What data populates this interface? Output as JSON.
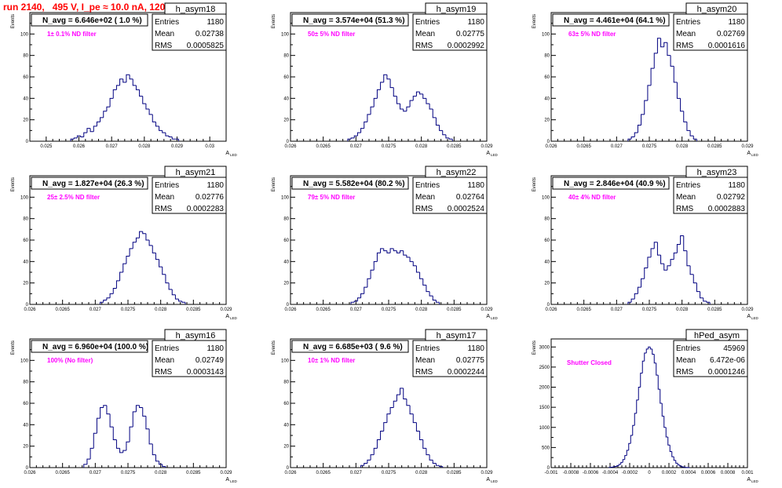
{
  "page": {
    "title": "run 2140,   495 V, I_pe ≈ 10.0 nA, 120 Hz",
    "y_axis_label": "Events",
    "x_axis_label": "A",
    "x_axis_label_sub": "LED",
    "stats_labels": {
      "entries": "Entries",
      "mean": "Mean",
      "rms": "RMS"
    },
    "colors": {
      "title": "#ff0000",
      "histogram": "#000080",
      "annotation": "#ff00ff",
      "frame": "#000000"
    }
  },
  "chart_data": [
    {
      "type": "bar",
      "name": "h_asym18",
      "title": "h_asym18",
      "navg": "N_avg = 6.646e+02 ( 1.0 %)",
      "filter": "1± 0.1% ND filter",
      "stats": {
        "entries": "1180",
        "mean": "0.02738",
        "rms": "0.0005825"
      },
      "xlim": [
        0.0245,
        0.0305
      ],
      "ylim": [
        0,
        120
      ],
      "xticks": [
        0.025,
        0.026,
        0.027,
        0.028,
        0.029,
        0.03
      ],
      "xticklabels": [
        "0.025",
        "0.026",
        "0.027",
        "0.028",
        "0.029",
        "0.03"
      ],
      "yticks": [
        0,
        20,
        40,
        60,
        80,
        100
      ],
      "yticklabels": [
        "0",
        "20",
        "40",
        "60",
        "80",
        "100"
      ],
      "x": [
        0.0258,
        0.0259,
        0.026,
        0.0261,
        0.0262,
        0.0263,
        0.0264,
        0.0265,
        0.0266,
        0.0267,
        0.0268,
        0.0269,
        0.027,
        0.0271,
        0.0272,
        0.0273,
        0.0274,
        0.0275,
        0.0276,
        0.0277,
        0.0278,
        0.0279,
        0.028,
        0.0281,
        0.0282,
        0.0283,
        0.0284,
        0.0285,
        0.0286,
        0.0287,
        0.0288,
        0.0289,
        0.029
      ],
      "values": [
        2,
        3,
        5,
        4,
        8,
        12,
        9,
        14,
        18,
        22,
        28,
        32,
        40,
        48,
        52,
        58,
        55,
        62,
        58,
        52,
        48,
        42,
        35,
        30,
        25,
        18,
        14,
        10,
        8,
        5,
        4,
        2,
        2
      ]
    },
    {
      "type": "bar",
      "name": "h_asym19",
      "title": "h_asym19",
      "navg": "N_avg = 3.574e+04 (51.3 %)",
      "filter": "50± 5% ND filter",
      "stats": {
        "entries": "1180",
        "mean": "0.02775",
        "rms": "0.0002992"
      },
      "xlim": [
        0.026,
        0.029
      ],
      "ylim": [
        0,
        120
      ],
      "xticks": [
        0.026,
        0.0265,
        0.027,
        0.0275,
        0.028,
        0.0285,
        0.029
      ],
      "xticklabels": [
        "0.026",
        "0.0265",
        "0.027",
        "0.0275",
        "0.028",
        "0.0285",
        "0.029"
      ],
      "yticks": [
        0,
        20,
        40,
        60,
        80,
        100
      ],
      "yticklabels": [
        "0",
        "20",
        "40",
        "60",
        "80",
        "100"
      ],
      "x": [
        0.0269,
        0.02695,
        0.027,
        0.02705,
        0.0271,
        0.02715,
        0.0272,
        0.02725,
        0.0273,
        0.02735,
        0.0274,
        0.02745,
        0.0275,
        0.02755,
        0.0276,
        0.02765,
        0.0277,
        0.02775,
        0.0278,
        0.02785,
        0.0279,
        0.02795,
        0.028,
        0.02805,
        0.0281,
        0.02815,
        0.0282,
        0.02825,
        0.0283,
        0.02835,
        0.0284,
        0.02845
      ],
      "values": [
        2,
        3,
        5,
        8,
        12,
        18,
        25,
        32,
        40,
        48,
        55,
        62,
        58,
        50,
        42,
        35,
        30,
        28,
        32,
        38,
        42,
        46,
        44,
        40,
        35,
        30,
        22,
        15,
        10,
        6,
        3,
        2
      ]
    },
    {
      "type": "bar",
      "name": "h_asym20",
      "title": "h_asym20",
      "navg": "N_avg = 4.461e+04 (64.1 %)",
      "filter": "63± 5% ND filter",
      "stats": {
        "entries": "1180",
        "mean": "0.02769",
        "rms": "0.0001616"
      },
      "xlim": [
        0.026,
        0.029
      ],
      "ylim": [
        0,
        120
      ],
      "xticks": [
        0.026,
        0.0265,
        0.027,
        0.0275,
        0.028,
        0.0285,
        0.029
      ],
      "xticklabels": [
        "0.026",
        "0.0265",
        "0.027",
        "0.0275",
        "0.028",
        "0.0285",
        "0.029"
      ],
      "yticks": [
        0,
        20,
        40,
        60,
        80,
        100
      ],
      "yticklabels": [
        "0",
        "20",
        "40",
        "60",
        "80",
        "100"
      ],
      "x": [
        0.0272,
        0.02725,
        0.0273,
        0.02735,
        0.0274,
        0.02745,
        0.0275,
        0.02755,
        0.0276,
        0.02765,
        0.0277,
        0.02775,
        0.0278,
        0.02785,
        0.0279,
        0.02795,
        0.028,
        0.02805,
        0.0281,
        0.02815,
        0.0282
      ],
      "values": [
        2,
        4,
        8,
        15,
        25,
        38,
        52,
        68,
        82,
        96,
        88,
        92,
        80,
        70,
        55,
        40,
        28,
        18,
        10,
        5,
        2
      ]
    },
    {
      "type": "bar",
      "name": "h_asym21",
      "title": "h_asym21",
      "navg": "N_avg = 1.827e+04 (26.3 %)",
      "filter": "25± 2.5% ND filter",
      "stats": {
        "entries": "1180",
        "mean": "0.02776",
        "rms": "0.0002283"
      },
      "xlim": [
        0.026,
        0.029
      ],
      "ylim": [
        0,
        120
      ],
      "xticks": [
        0.026,
        0.0265,
        0.027,
        0.0275,
        0.028,
        0.0285,
        0.029
      ],
      "xticklabels": [
        "0.026",
        "0.0265",
        "0.027",
        "0.0275",
        "0.028",
        "0.0285",
        "0.029"
      ],
      "yticks": [
        0,
        20,
        40,
        60,
        80,
        100
      ],
      "yticklabels": [
        "0",
        "20",
        "40",
        "60",
        "80",
        "100"
      ],
      "x": [
        0.0271,
        0.02715,
        0.0272,
        0.02725,
        0.0273,
        0.02735,
        0.0274,
        0.02745,
        0.0275,
        0.02755,
        0.0276,
        0.02765,
        0.0277,
        0.02775,
        0.0278,
        0.02785,
        0.0279,
        0.02795,
        0.028,
        0.02805,
        0.0281,
        0.02815,
        0.0282,
        0.02825,
        0.0283,
        0.02835
      ],
      "values": [
        2,
        4,
        6,
        10,
        15,
        22,
        30,
        38,
        45,
        52,
        58,
        62,
        68,
        66,
        60,
        55,
        48,
        42,
        35,
        28,
        20,
        14,
        9,
        5,
        3,
        2
      ]
    },
    {
      "type": "bar",
      "name": "h_asym22",
      "title": "h_asym22",
      "navg": "N_avg = 5.582e+04 (80.2 %)",
      "filter": "79± 5% ND filter",
      "stats": {
        "entries": "1180",
        "mean": "0.02764",
        "rms": "0.0002524"
      },
      "xlim": [
        0.026,
        0.029
      ],
      "ylim": [
        0,
        120
      ],
      "xticks": [
        0.026,
        0.0265,
        0.027,
        0.0275,
        0.028,
        0.0285,
        0.029
      ],
      "xticklabels": [
        "0.026",
        "0.0265",
        "0.027",
        "0.0275",
        "0.028",
        "0.0285",
        "0.029"
      ],
      "yticks": [
        0,
        20,
        40,
        60,
        80,
        100
      ],
      "yticklabels": [
        "0",
        "20",
        "40",
        "60",
        "80",
        "100"
      ],
      "x": [
        0.02695,
        0.027,
        0.02705,
        0.0271,
        0.02715,
        0.0272,
        0.02725,
        0.0273,
        0.02735,
        0.0274,
        0.02745,
        0.0275,
        0.02755,
        0.0276,
        0.02765,
        0.0277,
        0.02775,
        0.0278,
        0.02785,
        0.0279,
        0.02795,
        0.028,
        0.02805,
        0.0281,
        0.02815,
        0.0282,
        0.02825
      ],
      "values": [
        2,
        3,
        6,
        10,
        16,
        24,
        32,
        40,
        48,
        52,
        50,
        48,
        52,
        50,
        48,
        50,
        46,
        44,
        40,
        36,
        30,
        24,
        18,
        12,
        8,
        4,
        2
      ]
    },
    {
      "type": "bar",
      "name": "h_asym23",
      "title": "h_asym23",
      "navg": "N_avg = 2.846e+04 (40.9 %)",
      "filter": "40± 4% ND filter",
      "stats": {
        "entries": "1180",
        "mean": "0.02792",
        "rms": "0.0002883"
      },
      "xlim": [
        0.026,
        0.029
      ],
      "ylim": [
        0,
        120
      ],
      "xticks": [
        0.026,
        0.0265,
        0.027,
        0.0275,
        0.028,
        0.0285,
        0.029
      ],
      "xticklabels": [
        "0.026",
        "0.0265",
        "0.027",
        "0.0275",
        "0.028",
        "0.0285",
        "0.029"
      ],
      "yticks": [
        0,
        20,
        40,
        60,
        80,
        100
      ],
      "yticklabels": [
        "0",
        "20",
        "40",
        "60",
        "80",
        "100"
      ],
      "x": [
        0.0272,
        0.02725,
        0.0273,
        0.02735,
        0.0274,
        0.02745,
        0.0275,
        0.02755,
        0.0276,
        0.02765,
        0.0277,
        0.02775,
        0.0278,
        0.02785,
        0.0279,
        0.02795,
        0.028,
        0.02805,
        0.0281,
        0.02815,
        0.0282,
        0.02825,
        0.0283,
        0.02835,
        0.0284
      ],
      "values": [
        2,
        5,
        10,
        16,
        24,
        34,
        44,
        52,
        58,
        46,
        38,
        32,
        36,
        42,
        48,
        56,
        64,
        50,
        36,
        28,
        20,
        12,
        6,
        3,
        2
      ]
    },
    {
      "type": "bar",
      "name": "h_asym16",
      "title": "h_asym16",
      "navg": "N_avg = 6.960e+04 (100.0 %)",
      "filter": "100% (No filter)",
      "stats": {
        "entries": "1180",
        "mean": "0.02749",
        "rms": "0.0003143"
      },
      "xlim": [
        0.026,
        0.029
      ],
      "ylim": [
        0,
        120
      ],
      "xticks": [
        0.026,
        0.0265,
        0.027,
        0.0275,
        0.028,
        0.0285,
        0.029
      ],
      "xticklabels": [
        "0.026",
        "0.0265",
        "0.027",
        "0.0275",
        "0.028",
        "0.0285",
        "0.029"
      ],
      "yticks": [
        0,
        20,
        40,
        60,
        80,
        100
      ],
      "yticklabels": [
        "0",
        "20",
        "40",
        "60",
        "80",
        "100"
      ],
      "x": [
        0.02685,
        0.0269,
        0.02695,
        0.027,
        0.02705,
        0.0271,
        0.02715,
        0.0272,
        0.02725,
        0.0273,
        0.02735,
        0.0274,
        0.02745,
        0.0275,
        0.02755,
        0.0276,
        0.02765,
        0.0277,
        0.02775,
        0.0278,
        0.02785,
        0.0279,
        0.02795,
        0.028,
        0.02805
      ],
      "values": [
        3,
        8,
        18,
        32,
        46,
        56,
        58,
        50,
        38,
        26,
        18,
        14,
        16,
        24,
        38,
        52,
        58,
        56,
        48,
        36,
        22,
        12,
        6,
        3,
        1
      ]
    },
    {
      "type": "bar",
      "name": "h_asym17",
      "title": "h_asym17",
      "navg": "N_avg = 6.685e+03 ( 9.6 %)",
      "filter": "10± 1% ND filter",
      "stats": {
        "entries": "1180",
        "mean": "0.02775",
        "rms": "0.0002244"
      },
      "xlim": [
        0.026,
        0.029
      ],
      "ylim": [
        0,
        120
      ],
      "xticks": [
        0.026,
        0.0265,
        0.027,
        0.0275,
        0.028,
        0.0285,
        0.029
      ],
      "xticklabels": [
        "0.026",
        "0.0265",
        "0.027",
        "0.0275",
        "0.028",
        "0.0285",
        "0.029"
      ],
      "yticks": [
        0,
        20,
        40,
        60,
        80,
        100
      ],
      "yticklabels": [
        "0",
        "20",
        "40",
        "60",
        "80",
        "100"
      ],
      "x": [
        0.0271,
        0.02715,
        0.0272,
        0.02725,
        0.0273,
        0.02735,
        0.0274,
        0.02745,
        0.0275,
        0.02755,
        0.0276,
        0.02765,
        0.0277,
        0.02775,
        0.0278,
        0.02785,
        0.0279,
        0.02795,
        0.028,
        0.02805,
        0.0281,
        0.02815,
        0.0282,
        0.02825,
        0.0283
      ],
      "values": [
        2,
        4,
        7,
        12,
        18,
        26,
        34,
        42,
        50,
        56,
        62,
        68,
        74,
        64,
        58,
        50,
        42,
        34,
        26,
        18,
        12,
        7,
        4,
        2,
        1
      ]
    },
    {
      "type": "bar",
      "name": "hPed_asym",
      "title": "hPed_asym",
      "navg": "",
      "filter": "Shutter Closed",
      "stats": {
        "entries": "45969",
        "mean": "6.472e-06",
        "rms": "0.0001246"
      },
      "xlim": [
        -0.001,
        0.001
      ],
      "ylim": [
        0,
        3200
      ],
      "xticks": [
        -0.001,
        -0.0008,
        -0.0006,
        -0.0004,
        -0.0002,
        0,
        0.0002,
        0.0004,
        0.0006,
        0.0008,
        0.001
      ],
      "xticklabels": [
        "-0.001",
        "-0.0008",
        "-0.0006",
        "-0.0004",
        "-0.0002",
        "0",
        "0.0002",
        "0.0004",
        "0.0006",
        "0.0008",
        "0.001"
      ],
      "yticks": [
        0,
        500,
        1000,
        1500,
        2000,
        2500,
        3000
      ],
      "yticklabels": [
        "0",
        "500",
        "1000",
        "1500",
        "2000",
        "2500",
        "3000"
      ],
      "x": [
        -0.0004,
        -0.00038,
        -0.00036,
        -0.00034,
        -0.00032,
        -0.0003,
        -0.00028,
        -0.00026,
        -0.00024,
        -0.00022,
        -0.0002,
        -0.00018,
        -0.00016,
        -0.00014,
        -0.00012,
        -0.0001,
        -8e-05,
        -6e-05,
        -4e-05,
        -2e-05,
        0,
        2e-05,
        4e-05,
        6e-05,
        8e-05,
        0.0001,
        0.00012,
        0.00014,
        0.00016,
        0.00018,
        0.0002,
        0.00022,
        0.00024,
        0.00026,
        0.00028,
        0.0003,
        0.00032,
        0.00034,
        0.00036,
        0.00038,
        0.0004
      ],
      "values": [
        5,
        10,
        18,
        30,
        50,
        80,
        130,
        200,
        300,
        430,
        600,
        800,
        1050,
        1350,
        1680,
        2000,
        2350,
        2650,
        2850,
        2950,
        3000,
        2950,
        2820,
        2600,
        2300,
        1950,
        1600,
        1280,
        1000,
        760,
        560,
        400,
        270,
        180,
        110,
        65,
        38,
        20,
        10,
        5,
        2
      ]
    }
  ]
}
